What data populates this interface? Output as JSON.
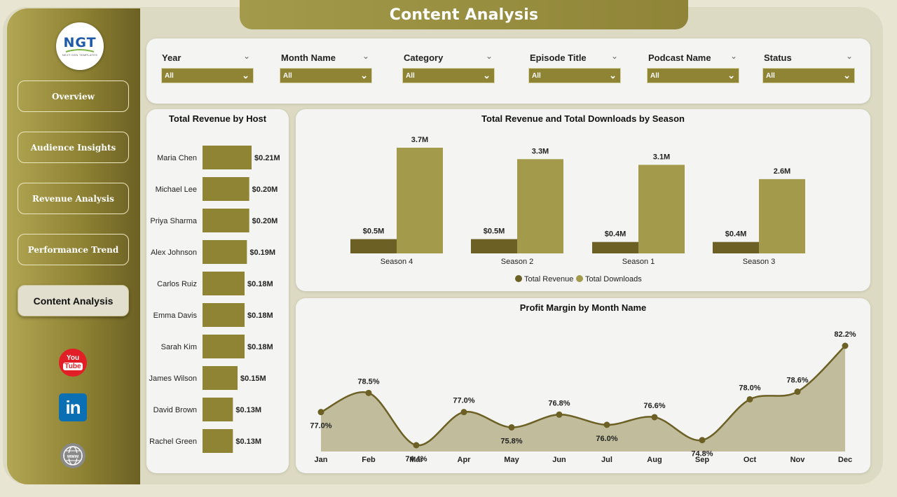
{
  "app": {
    "title": "Content Analysis"
  },
  "logo": {
    "text": "NGT",
    "subtext": "NEXT GEN TEMPLATES"
  },
  "nav": [
    {
      "label": "Overview",
      "active": false
    },
    {
      "label": "Audience Insights",
      "active": false
    },
    {
      "label": "Revenue Analysis",
      "active": false
    },
    {
      "label": "Performance Trend",
      "active": false
    },
    {
      "label": "Content Analysis",
      "active": true
    }
  ],
  "social": {
    "youtube_line1": "You",
    "youtube_line2": "Tube",
    "linkedin": "in"
  },
  "filters": [
    {
      "label": "Year",
      "value": "All"
    },
    {
      "label": "Month Name",
      "value": "All"
    },
    {
      "label": "Category",
      "value": "All"
    },
    {
      "label": "Episode Title",
      "value": "All"
    },
    {
      "label": "Podcast Name",
      "value": "All"
    },
    {
      "label": "Status",
      "value": "All"
    }
  ],
  "colors": {
    "accent": "#8f8334",
    "dark": "#6c6024",
    "light": "#a39a4b",
    "area": "#c0bc9c",
    "line": "#6c6024"
  },
  "chart_data": [
    {
      "type": "bar",
      "orientation": "horizontal",
      "title": "Total Revenue by Host",
      "categories": [
        "Maria Chen",
        "Michael Lee",
        "Priya Sharma",
        "Alex Johnson",
        "Carlos Ruiz",
        "Emma Davis",
        "Sarah Kim",
        "James Wilson",
        "David Brown",
        "Rachel Green"
      ],
      "values": [
        0.21,
        0.2,
        0.2,
        0.19,
        0.18,
        0.18,
        0.18,
        0.15,
        0.13,
        0.13
      ],
      "labels": [
        "$0.21M",
        "$0.20M",
        "$0.20M",
        "$0.19M",
        "$0.18M",
        "$0.18M",
        "$0.18M",
        "$0.15M",
        "$0.13M",
        "$0.13M"
      ]
    },
    {
      "type": "bar",
      "title": "Total Revenue and Total Downloads by Season",
      "categories": [
        "Season 4",
        "Season 2",
        "Season 1",
        "Season 3"
      ],
      "series": [
        {
          "name": "Total Revenue",
          "values": [
            0.5,
            0.5,
            0.4,
            0.4
          ],
          "labels": [
            "$0.5M",
            "$0.5M",
            "$0.4M",
            "$0.4M"
          ],
          "color": "#6c6024"
        },
        {
          "name": "Total Downloads",
          "values": [
            3.7,
            3.3,
            3.1,
            2.6
          ],
          "labels": [
            "3.7M",
            "3.3M",
            "3.1M",
            "2.6M"
          ],
          "color": "#a39a4b"
        }
      ],
      "legend": "bottom"
    },
    {
      "type": "area",
      "title": "Profit Margin by Month Name",
      "categories": [
        "Jan",
        "Feb",
        "Mar",
        "Apr",
        "May",
        "Jun",
        "Jul",
        "Aug",
        "Sep",
        "Oct",
        "Nov",
        "Dec"
      ],
      "values": [
        77.0,
        78.5,
        74.4,
        77.0,
        75.8,
        76.8,
        76.0,
        76.6,
        74.8,
        78.0,
        78.6,
        82.2
      ],
      "labels": [
        "77.0%",
        "78.5%",
        "74.4%",
        "77.0%",
        "75.8%",
        "76.8%",
        "76.0%",
        "76.6%",
        "74.8%",
        "78.0%",
        "78.6%",
        "82.2%"
      ]
    }
  ]
}
